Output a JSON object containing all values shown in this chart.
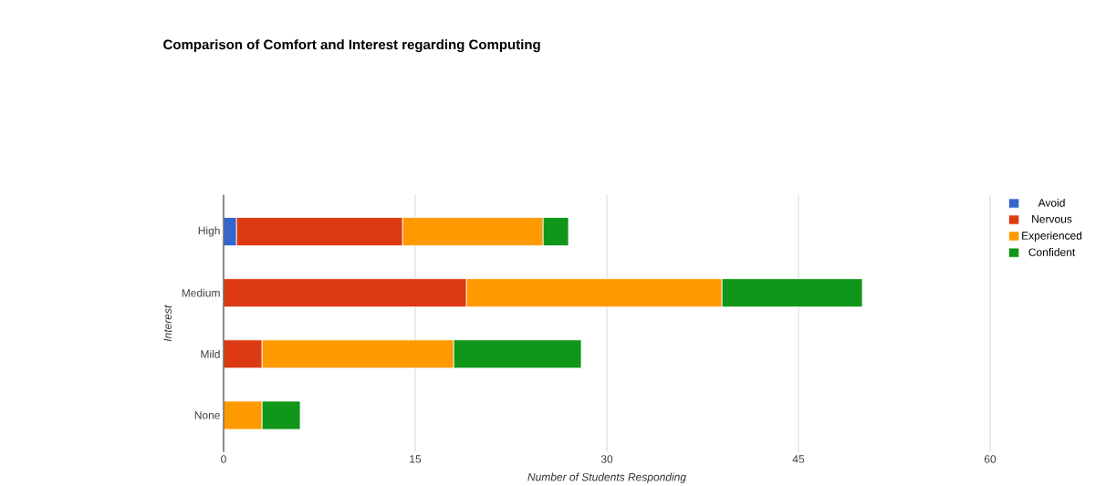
{
  "chart_data": {
    "type": "bar",
    "orientation": "horizontal",
    "stacked": true,
    "title": "Comparison of Comfort and Interest regarding Computing",
    "xlabel": "Number of Students Responding",
    "ylabel": "Interest",
    "categories": [
      "High",
      "Medium",
      "Mild",
      "None"
    ],
    "series": [
      {
        "name": "Avoid",
        "color": "#3366cc",
        "values": [
          1,
          0,
          0,
          0
        ]
      },
      {
        "name": "Nervous",
        "color": "#dc3912",
        "values": [
          13,
          19,
          3,
          0
        ]
      },
      {
        "name": "Experienced",
        "color": "#ff9900",
        "values": [
          11,
          20,
          15,
          3
        ]
      },
      {
        "name": "Confident",
        "color": "#109618",
        "values": [
          2,
          11,
          10,
          3
        ]
      }
    ],
    "xlim": [
      0,
      60
    ],
    "xticks": [
      0,
      15,
      30,
      45,
      60
    ],
    "grid": "x",
    "legend": "top right"
  }
}
